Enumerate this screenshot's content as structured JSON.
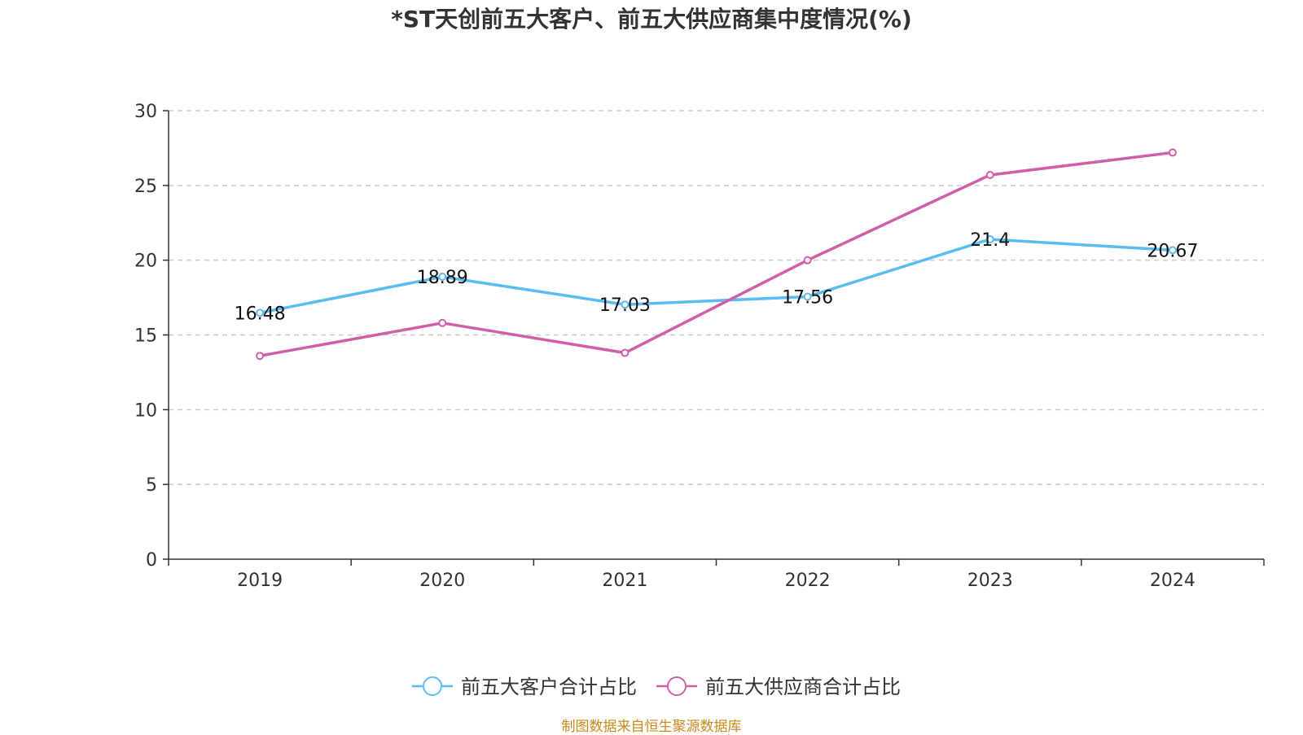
{
  "chart_data": {
    "type": "line",
    "title": "*ST天创前五大客户、前五大供应商集中度情况(%)",
    "categories": [
      "2019",
      "2020",
      "2021",
      "2022",
      "2023",
      "2024"
    ],
    "ylim": [
      0,
      30
    ],
    "yticks": [
      0,
      5,
      10,
      15,
      20,
      25,
      30
    ],
    "grid": true,
    "legend_position": "bottom",
    "series": [
      {
        "name": "前五大客户合计占比",
        "color": "#5bbcf0",
        "values": [
          16.48,
          18.89,
          17.03,
          17.56,
          21.4,
          20.67
        ],
        "labels": [
          "16.48",
          "18.89",
          "17.03",
          "17.56",
          "21.4",
          "20.67"
        ]
      },
      {
        "name": "前五大供应商合计占比",
        "color": "#d05fa8",
        "values": [
          13.6,
          15.8,
          13.8,
          20.0,
          25.7,
          27.2
        ],
        "labels": []
      }
    ]
  },
  "footer": {
    "source": "制图数据来自恒生聚源数据库"
  }
}
